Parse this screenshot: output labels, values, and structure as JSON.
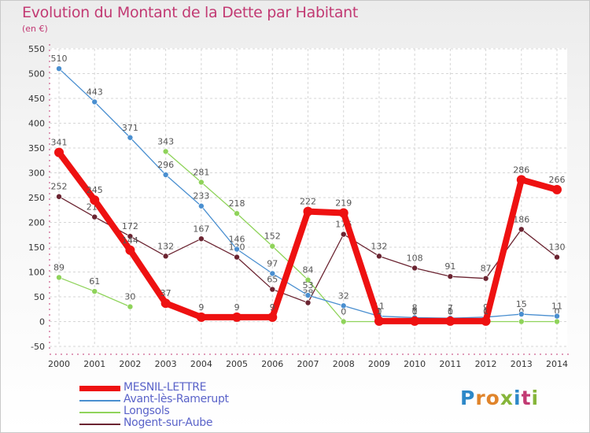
{
  "title": "Evolution du Montant de la Dette par Habitant",
  "unit_label": "(en €)",
  "logo": {
    "letters": [
      "P",
      "r",
      "o",
      "x",
      "i",
      "t",
      "i"
    ],
    "colors": [
      "#2d88c8",
      "#e0842b",
      "#e0842b",
      "#86b53a",
      "#2d88c8",
      "#c23a73",
      "#86b53a"
    ]
  },
  "chart_data": {
    "type": "line",
    "x": [
      "2000",
      "2001",
      "2002",
      "2003",
      "2004",
      "2005",
      "2006",
      "2007",
      "2008",
      "2009",
      "2010",
      "2011",
      "2012",
      "2013",
      "2014"
    ],
    "yticks": [
      "-50",
      "0",
      "50",
      "100",
      "150",
      "200",
      "250",
      "300",
      "350",
      "400",
      "450",
      "500",
      "550"
    ],
    "ylim": [
      -50,
      550
    ],
    "grid": true,
    "legend_placement": "bottom-left",
    "series": [
      {
        "name": "Nogent-sur-Aube",
        "color": "#6b2431",
        "width": 1.3,
        "values": [
          252,
          211,
          172,
          132,
          167,
          130,
          65,
          38,
          176,
          132,
          108,
          91,
          87,
          186,
          130
        ],
        "labels": [
          "252",
          "211",
          "172",
          "132",
          "167",
          "130",
          "65",
          "38",
          "176",
          "132",
          "108",
          "91",
          "87",
          "186",
          "130"
        ]
      },
      {
        "name": "Longsols",
        "color": "#8fd35a",
        "width": 1.3,
        "values": [
          89,
          61,
          30,
          343,
          281,
          218,
          152,
          84,
          0,
          0,
          0,
          0,
          0,
          0,
          0
        ],
        "labels": [
          "89",
          "61",
          "30",
          "343",
          "281",
          "218",
          "152",
          "84",
          "0",
          "0",
          "0",
          "0",
          "0",
          "0",
          "0"
        ],
        "gaps_after_index": [
          2
        ]
      },
      {
        "name": "Avant-lès-Ramerupt",
        "color": "#4a8fd0",
        "width": 1.3,
        "values": [
          510,
          443,
          371,
          296,
          233,
          146,
          97,
          53,
          32,
          11,
          8,
          7,
          9,
          15,
          11
        ],
        "labels": [
          "510",
          "443",
          "371",
          "296",
          "233",
          "146",
          "97",
          "53",
          "32",
          "11",
          "8",
          "7",
          "9",
          "15",
          "11"
        ]
      },
      {
        "name": "MESNIL-LETTRE",
        "color": "#ee1111",
        "width": 8,
        "values": [
          341,
          245,
          144,
          37,
          9,
          9,
          9,
          222,
          219,
          1,
          1,
          1,
          1,
          286,
          266
        ],
        "labels": [
          "341",
          "245",
          "144",
          "37",
          "9",
          "9",
          "9",
          "222",
          "219",
          "1",
          "1",
          "1",
          "1",
          "286",
          "266"
        ]
      }
    ],
    "legend_order": [
      "MESNIL-LETTRE",
      "Avant-lès-Ramerupt",
      "Longsols",
      "Nogent-sur-Aube"
    ]
  }
}
